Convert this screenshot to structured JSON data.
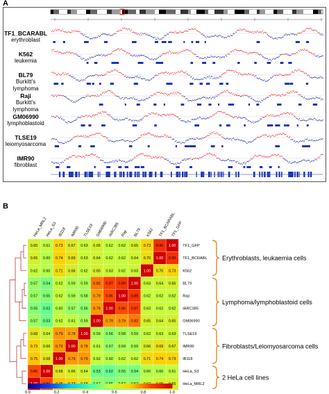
{
  "panel_a": {
    "letter": "A",
    "samples": [
      {
        "name": "TF1_BCARABL",
        "type": "erythroblast"
      },
      {
        "name": "K562",
        "type": "leukemia"
      },
      {
        "name": "BL79",
        "type": "Burkitt's lymphoma"
      },
      {
        "name": "Raji",
        "type": "Burkitt's lymphoma"
      },
      {
        "name": "GM06990",
        "type": "lymphoblastoid"
      },
      {
        "name": "TLSE19",
        "type": "leiomyosarcoma"
      },
      {
        "name": "IMR90",
        "type": "fibroblast"
      }
    ],
    "colors": {
      "early": "#e8262a",
      "late": "#1f2aa8",
      "domain": "#1a35b8"
    }
  },
  "panel_b": {
    "letter": "B",
    "cluster_labels": [
      "Erythroblasts, leukaemia cells",
      "Lymphoma/lymphoblastoid cells",
      "Fibroblasts/Leiomyosarcoma cells",
      "2 HeLa cell lines"
    ]
  },
  "chart_data": {
    "type": "heatmap",
    "rows": [
      "TF1_GFP",
      "TF1_BCRABL",
      "K562",
      "BL79",
      "Raji",
      "IARC385",
      "GM06990",
      "TLSE19",
      "IMR90",
      "IB118",
      "HeLa_S3",
      "HeLa_MRL2"
    ],
    "columns": [
      "HeLa_MRL2",
      "HeLa_S3",
      "IB118",
      "IMR90",
      "TLSE19",
      "GM06990",
      "IARC385",
      "Raji",
      "BL79",
      "K562",
      "TF1_BCARABL",
      "TF1_GFP"
    ],
    "values": [
      [
        "0.65",
        "0.61",
        "0.73",
        "0.67",
        "0.63",
        "0.65",
        "0.62",
        "0.62",
        "0.65",
        "0.73",
        "0.90",
        "1.00"
      ],
      [
        "0.65",
        "0.60",
        "0.74",
        "0.69",
        "0.63",
        "0.64",
        "0.62",
        "0.62",
        "0.64",
        "0.70",
        "1.00",
        "0.90"
      ],
      [
        "0.62",
        "0.60",
        "0.71",
        "0.66",
        "0.62",
        "0.65",
        "0.63",
        "0.62",
        "0.63",
        "1.00",
        "0.70",
        "0.73"
      ],
      [
        "0.57",
        "0.54",
        "0.62",
        "0.59",
        "0.59",
        "0.82",
        "0.87",
        "0.89",
        "1.00",
        "0.63",
        "0.64",
        "0.65"
      ],
      [
        "0.57",
        "0.55",
        "0.62",
        "0.59",
        "0.58",
        "0.79",
        "0.86",
        "1.00",
        "0.89",
        "0.62",
        "0.62",
        "0.62"
      ],
      [
        "0.55",
        "0.52",
        "0.60",
        "0.57",
        "0.56",
        "0.79",
        "1.00",
        "0.86",
        "0.87",
        "0.63",
        "0.62",
        "0.62"
      ],
      [
        "0.57",
        "0.53",
        "0.62",
        "0.61",
        "0.59",
        "1.00",
        "0.79",
        "0.79",
        "0.82",
        "0.65",
        "0.64",
        "0.65"
      ],
      [
        "0.68",
        "0.64",
        "0.79",
        "0.78",
        "1.00",
        "0.59",
        "0.56",
        "0.58",
        "0.59",
        "0.62",
        "0.63",
        "0.63"
      ],
      [
        "0.73",
        "0.66",
        "0.79",
        "1.00",
        "0.78",
        "0.61",
        "0.57",
        "0.59",
        "0.59",
        "0.66",
        "0.69",
        "0.67"
      ],
      [
        "0.75",
        "0.68",
        "1.00",
        "0.79",
        "0.79",
        "0.62",
        "0.60",
        "0.62",
        "0.62",
        "0.71",
        "0.74",
        "0.73"
      ],
      [
        "0.86",
        "1.00",
        "0.68",
        "0.66",
        "0.64",
        "0.53",
        "0.52",
        "0.55",
        "0.54",
        "0.60",
        "0.60",
        "0.61"
      ],
      [
        "1.00",
        "0.86",
        "0.75",
        "0.73",
        "0.68",
        "0.57",
        "0.55",
        "0.57",
        "0.57",
        "0.62",
        "0.65",
        "0.65"
      ]
    ],
    "scale": {
      "min": 0.0,
      "max": 1.0,
      "ticks": [
        "0.0",
        "0.2",
        "0.4",
        "0.6",
        "0.8",
        "1.0"
      ]
    },
    "colormap": [
      "#00008f",
      "#0040ff",
      "#00c8ff",
      "#40ffb0",
      "#c0ff40",
      "#ffd000",
      "#ff4000",
      "#d00000"
    ],
    "legend": "bottom"
  }
}
